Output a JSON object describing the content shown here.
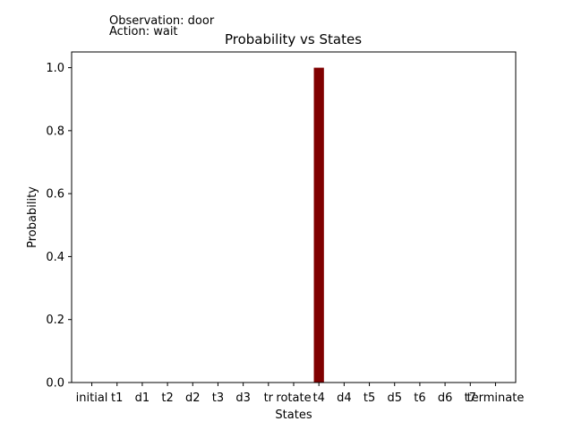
{
  "annotations": {
    "observation": "Observation: door",
    "action": "Action: wait"
  },
  "chart_data": {
    "type": "bar",
    "title": "Probability vs States",
    "xlabel": "States",
    "ylabel": "Probability",
    "categories": [
      "initial",
      "t1",
      "d1",
      "t2",
      "d2",
      "t3",
      "d3",
      "tr",
      "rotate",
      "t4",
      "d4",
      "t5",
      "d5",
      "t6",
      "d6",
      "t7",
      "terminate"
    ],
    "values": [
      0,
      0,
      0,
      0,
      0,
      0,
      0,
      0,
      0,
      1.0,
      0,
      0,
      0,
      0,
      0,
      0,
      0
    ],
    "ylim": [
      0,
      1.05
    ],
    "yticks": [
      0.0,
      0.2,
      0.4,
      0.6,
      0.8,
      1.0
    ],
    "ytick_labels": [
      "0.0",
      "0.2",
      "0.4",
      "0.6",
      "0.8",
      "1.0"
    ],
    "bar_color": "#800000",
    "grid": false
  }
}
